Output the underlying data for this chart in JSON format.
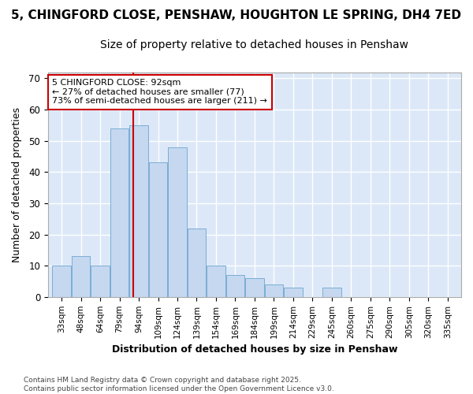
{
  "title1": "5, CHINGFORD CLOSE, PENSHAW, HOUGHTON LE SPRING, DH4 7ED",
  "title2": "Size of property relative to detached houses in Penshaw",
  "xlabel": "Distribution of detached houses by size in Penshaw",
  "ylabel": "Number of detached properties",
  "bar_values": [
    10,
    13,
    10,
    54,
    55,
    43,
    48,
    22,
    10,
    7,
    6,
    4,
    3,
    0,
    3,
    0,
    0,
    0,
    0,
    0,
    0
  ],
  "categories": [
    "33sqm",
    "48sqm",
    "64sqm",
    "79sqm",
    "94sqm",
    "109sqm",
    "124sqm",
    "139sqm",
    "154sqm",
    "169sqm",
    "184sqm",
    "199sqm",
    "214sqm",
    "229sqm",
    "245sqm",
    "260sqm",
    "275sqm",
    "290sqm",
    "305sqm",
    "320sqm",
    "335sqm"
  ],
  "bar_color": "#c5d8f0",
  "bar_edge_color": "#7aadd4",
  "red_line_x": 3.72,
  "annotation_line1": "5 CHINGFORD CLOSE: 92sqm",
  "annotation_line2": "← 27% of detached houses are smaller (77)",
  "annotation_line3": "73% of semi-detached houses are larger (211) →",
  "annotation_box_color": "#ffffff",
  "annotation_box_edge": "#cc0000",
  "red_line_color": "#cc0000",
  "ylim": [
    0,
    72
  ],
  "yticks": [
    0,
    10,
    20,
    30,
    40,
    50,
    60,
    70
  ],
  "footer": "Contains HM Land Registry data © Crown copyright and database right 2025.\nContains public sector information licensed under the Open Government Licence v3.0.",
  "bg_color": "#ffffff",
  "plot_bg_color": "#dce8f8",
  "grid_color": "#ffffff",
  "title_fontsize": 11,
  "subtitle_fontsize": 10
}
